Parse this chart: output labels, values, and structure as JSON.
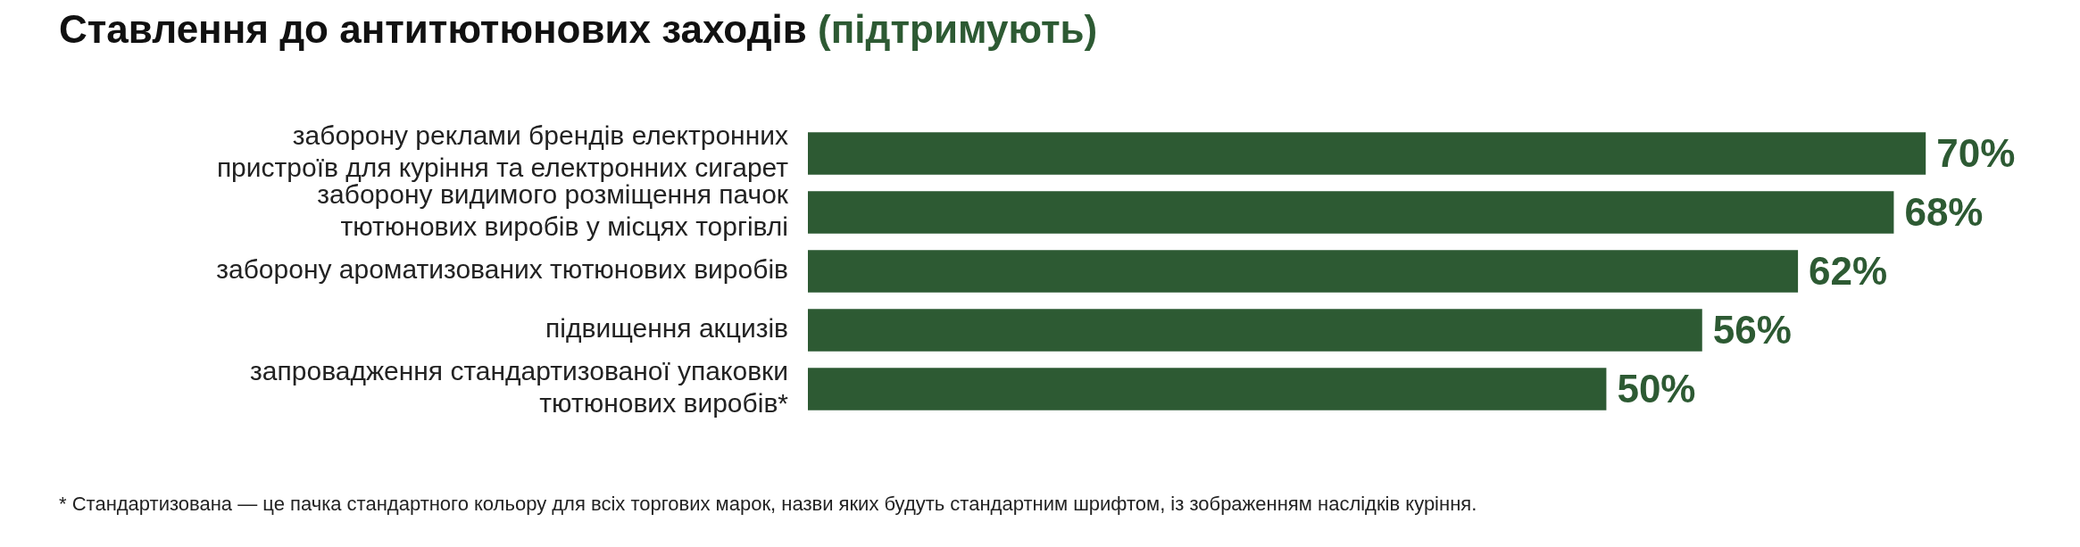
{
  "chart_data": {
    "type": "bar",
    "orientation": "horizontal",
    "title": "Ставлення до антитютюнових заходів",
    "subtitle": "(підтримують)",
    "categories": [
      "заборону реклами брендів електронних\nпристроїв для куріння та електронних сигарет",
      "заборону видимого розміщення пачок\nтютюнових виробів у місцях торгівлі",
      "заборону ароматизованих тютюнових виробів",
      "підвищення акцизів",
      "запровадження стандартизованої упаковки\nтютюнових виробів*"
    ],
    "values": [
      70,
      68,
      62,
      56,
      50
    ],
    "value_labels": [
      "70%",
      "68%",
      "62%",
      "56%",
      "50%"
    ],
    "color": "#2d5a33",
    "annotations": [
      "* Стандартизована — це пачка стандартного кольору для всіх торгових марок, назви яких будуть стандартним шрифтом, із зображенням наслідків куріння."
    ]
  }
}
